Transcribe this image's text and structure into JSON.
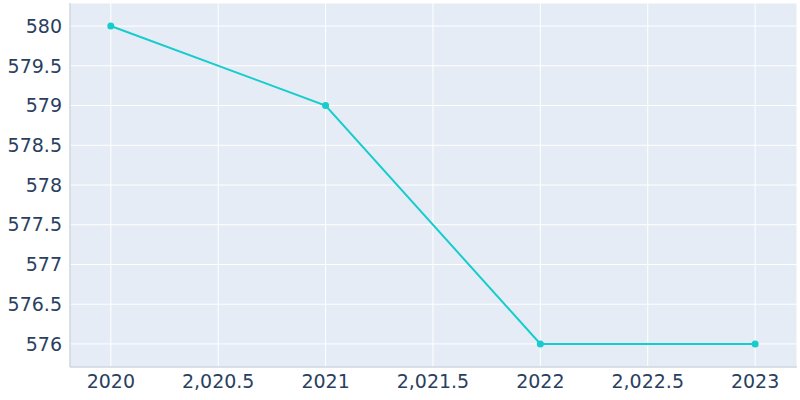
{
  "chart_data": {
    "type": "line",
    "x": [
      2020,
      2021,
      2022,
      2023
    ],
    "values": [
      580,
      579,
      576,
      576
    ],
    "color": "#17cccc",
    "marker": "circle",
    "xlim": [
      2019.81,
      2023.195
    ],
    "xticks": [
      2020,
      {
        "value": 2020.5,
        "label": "2,020.5"
      },
      2021,
      {
        "value": 2021.5,
        "label": "2,021.5"
      },
      2022,
      {
        "value": 2022.5,
        "label": "2,022.5"
      },
      2023
    ],
    "ylim": [
      575.71,
      580.29
    ],
    "yticks": [
      576,
      576.5,
      577,
      577.5,
      578,
      578.5,
      579,
      579.5,
      580
    ],
    "grid": true
  }
}
